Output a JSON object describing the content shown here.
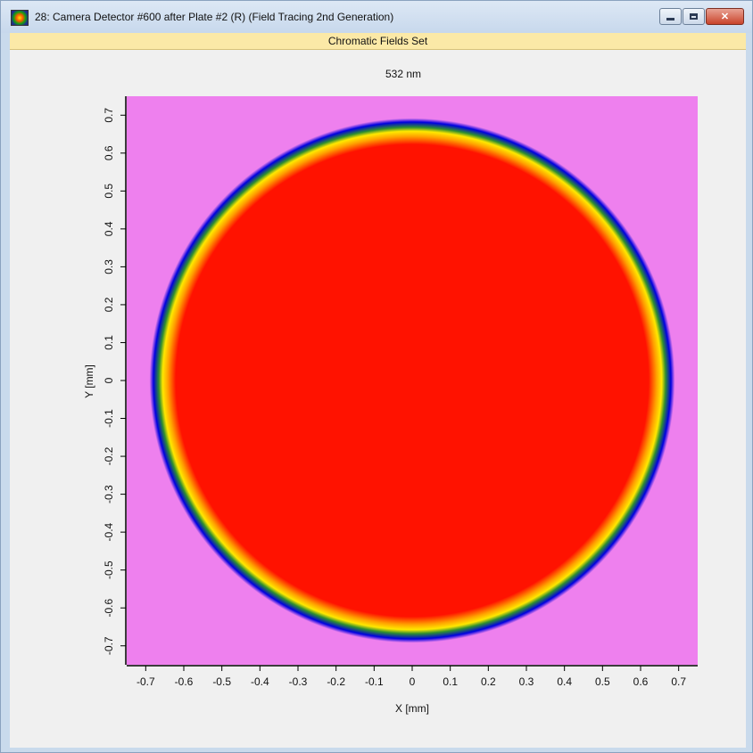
{
  "window": {
    "title": "28: Camera Detector #600 after Plate #2 (R) (Field Tracing 2nd Generation)",
    "app_icon": "field-tracing-icon",
    "controls": [
      "minimize-icon",
      "maximize-icon",
      "close-icon"
    ]
  },
  "subtitle": "Chromatic Fields Set",
  "plot": {
    "wavelength_label": "532 nm",
    "xlabel": "X [mm]",
    "ylabel": "Y [mm]"
  },
  "chart_data": {
    "type": "heatmap",
    "title": "532 nm",
    "xlabel": "X [mm]",
    "ylabel": "Y [mm]",
    "xlim": [
      -0.75,
      0.75
    ],
    "ylim": [
      -0.75,
      0.75
    ],
    "xticks": [
      "-0.7",
      "-0.6",
      "-0.5",
      "-0.4",
      "-0.3",
      "-0.2",
      "-0.1",
      "0",
      "0.1",
      "0.2",
      "0.3",
      "0.4",
      "0.5",
      "0.6",
      "0.7"
    ],
    "yticks": [
      "0.7",
      "0.6",
      "0.5",
      "0.4",
      "0.3",
      "0.2",
      "0.1",
      "0",
      "-0.1",
      "-0.2",
      "-0.3",
      "-0.4",
      "-0.5",
      "-0.6",
      "-0.7"
    ],
    "shape": "circle",
    "center": [
      0,
      0
    ],
    "radius": 0.69,
    "background_color": "#ee80ee",
    "fill_color": "#ff1200",
    "edge_colors": [
      "#ff1200",
      "#ffd700",
      "#1f7f1f",
      "#0000dd",
      "#ee80ee"
    ]
  }
}
